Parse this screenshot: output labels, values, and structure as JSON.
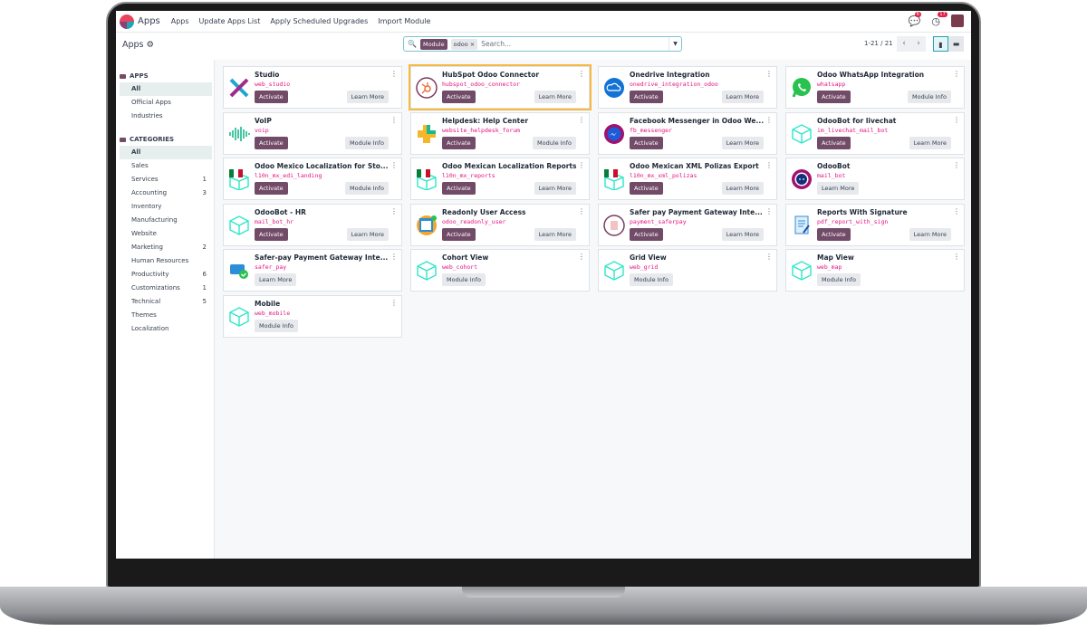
{
  "navbar": {
    "brand": "Apps",
    "menu": [
      "Apps",
      "Update Apps List",
      "Apply Scheduled Upgrades",
      "Import Module"
    ],
    "messages_badge": "6",
    "activities_badge": "17"
  },
  "control_panel": {
    "title": "Apps",
    "search": {
      "facet_label": "Module",
      "facet_value": "odoo",
      "placeholder": "Search..."
    },
    "pager": "1-21 / 21"
  },
  "sidebar": {
    "apps_heading": "APPS",
    "apps": [
      {
        "label": "All",
        "active": true
      },
      {
        "label": "Official Apps"
      },
      {
        "label": "Industries"
      }
    ],
    "categories_heading": "CATEGORIES",
    "categories": [
      {
        "label": "All",
        "active": true
      },
      {
        "label": "Sales"
      },
      {
        "label": "Services",
        "count": "1"
      },
      {
        "label": "Accounting",
        "count": "3"
      },
      {
        "label": "Inventory"
      },
      {
        "label": "Manufacturing"
      },
      {
        "label": "Website"
      },
      {
        "label": "Marketing",
        "count": "2"
      },
      {
        "label": "Human Resources"
      },
      {
        "label": "Productivity",
        "count": "6"
      },
      {
        "label": "Customizations",
        "count": "1"
      },
      {
        "label": "Technical",
        "count": "5"
      },
      {
        "label": "Themes"
      },
      {
        "label": "Localization"
      }
    ]
  },
  "colors": {
    "primary": "#714b67",
    "technical_name": "#e5117f",
    "highlight": "#f5b942"
  },
  "cards": [
    {
      "name": "Studio",
      "tech": "web_studio",
      "activate": "Activate",
      "secondary": "Learn More",
      "icon": "studio-icon"
    },
    {
      "name": "HubSpot Odoo Connector",
      "tech": "hubspot_odoo_connector",
      "activate": "Activate",
      "secondary": "Learn More",
      "icon": "hubspot-icon",
      "highlight": true
    },
    {
      "name": "Onedrive Integration",
      "tech": "onedrive_integration_odoo",
      "activate": "Activate",
      "secondary": "Learn More",
      "icon": "onedrive-icon"
    },
    {
      "name": "Odoo WhatsApp Integration",
      "tech": "whatsapp",
      "activate": "Activate",
      "secondary": "Module Info",
      "icon": "whatsapp-icon"
    },
    {
      "name": "VoIP",
      "tech": "voip",
      "activate": "Activate",
      "secondary": "Module Info",
      "icon": "voip-icon"
    },
    {
      "name": "Helpdesk: Help Center",
      "tech": "website_helpdesk_forum",
      "activate": "Activate",
      "secondary": "Module Info",
      "icon": "helpdesk-icon"
    },
    {
      "name": "Facebook Messenger in Odoo We...",
      "tech": "fb_messenger",
      "activate": "Activate",
      "secondary": "Learn More",
      "icon": "messenger-icon"
    },
    {
      "name": "OdooBot for livechat",
      "tech": "im_livechat_mail_bot",
      "activate": "Activate",
      "secondary": "Learn More",
      "icon": "module-box-icon"
    },
    {
      "name": "Odoo Mexico Localization for Sto...",
      "tech": "l10n_mx_edi_landing",
      "activate": "Activate",
      "secondary": "Module Info",
      "icon": "mexico-flag-icon"
    },
    {
      "name": "Odoo Mexican Localization Reports",
      "tech": "l10n_mx_reports",
      "activate": "Activate",
      "secondary": "Learn More",
      "icon": "mexico-flag-icon"
    },
    {
      "name": "Odoo Mexican XML Polizas Export",
      "tech": "l10n_mx_xml_polizas",
      "activate": "Activate",
      "secondary": "Learn More",
      "icon": "mexico-flag-icon"
    },
    {
      "name": "OdooBot",
      "tech": "mail_bot",
      "secondary": "Learn More",
      "icon": "odoobot-icon"
    },
    {
      "name": "OdooBot - HR",
      "tech": "mail_bot_hr",
      "activate": "Activate",
      "secondary": "Learn More",
      "icon": "module-box-icon"
    },
    {
      "name": "Readonly User Access",
      "tech": "odoo_readonly_user",
      "activate": "Activate",
      "secondary": "Learn More",
      "icon": "readonly-user-icon"
    },
    {
      "name": "Safer pay Payment Gateway Inte...",
      "tech": "payment_saferpay",
      "activate": "Activate",
      "secondary": "Learn More",
      "icon": "saferpay-icon"
    },
    {
      "name": "Reports With Signature",
      "tech": "pdf_report_with_sign",
      "activate": "Activate",
      "secondary": "Learn More",
      "icon": "report-signature-icon"
    },
    {
      "name": "Safer-pay Payment Gateway Inte...",
      "tech": "safer_pay",
      "secondary": "Learn More",
      "icon": "payment-card-icon"
    },
    {
      "name": "Cohort View",
      "tech": "web_cohort",
      "secondary": "Module Info",
      "icon": "module-box-icon"
    },
    {
      "name": "Grid View",
      "tech": "web_grid",
      "secondary": "Module Info",
      "icon": "module-box-icon"
    },
    {
      "name": "Map View",
      "tech": "web_map",
      "secondary": "Module Info",
      "icon": "module-box-icon"
    },
    {
      "name": "Mobile",
      "tech": "web_mobile",
      "secondary": "Module Info",
      "icon": "module-box-icon"
    }
  ]
}
